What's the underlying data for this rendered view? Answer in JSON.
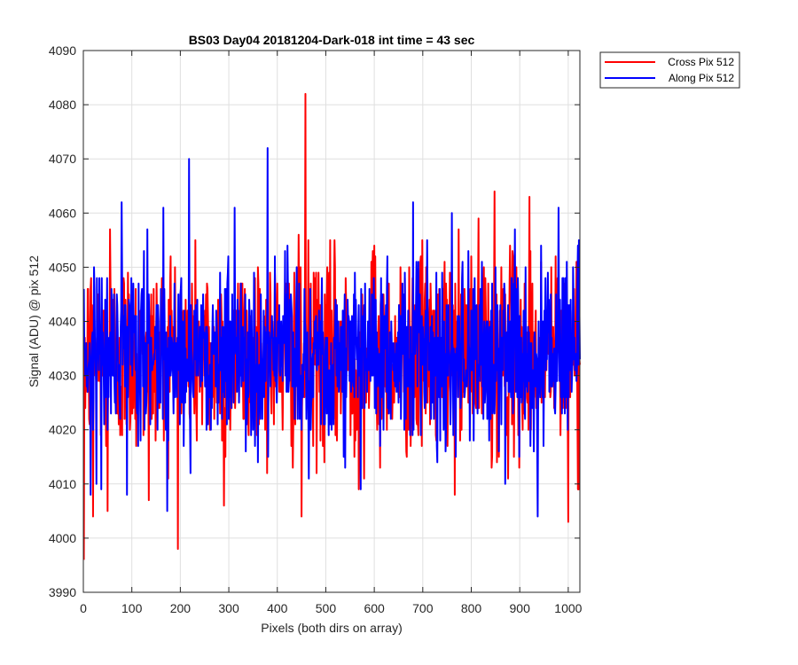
{
  "figure": {
    "background": "#ffffff"
  },
  "chart_data": {
    "type": "line",
    "title": "BS03 Day04 20181204-Dark-018 int time = 43 sec",
    "xlabel": "Pixels (both dirs on array)",
    "ylabel": "Signal (ADU) @ pix 512",
    "xlim": [
      0,
      1024
    ],
    "ylim": [
      3990,
      4090
    ],
    "xticks": [
      0,
      100,
      200,
      300,
      400,
      500,
      600,
      700,
      800,
      900,
      1000
    ],
    "yticks": [
      3990,
      4000,
      4010,
      4020,
      4030,
      4040,
      4050,
      4060,
      4070,
      4080,
      4090
    ],
    "grid": true,
    "legend": "outside-top-right",
    "x": {
      "start": 1,
      "end": 1024,
      "step": 1
    },
    "series": [
      {
        "name": "Cross Pix 512",
        "color": "#ff0000",
        "baseline": 4034,
        "noise_sd": 9,
        "sampled_values": [
          [
            1,
            3996
          ],
          [
            20,
            4004
          ],
          [
            50,
            4005
          ],
          [
            55,
            4057
          ],
          [
            80,
            4019
          ],
          [
            120,
            4044
          ],
          [
            135,
            4007
          ],
          [
            180,
            4052
          ],
          [
            260,
            4027
          ],
          [
            290,
            4006
          ],
          [
            360,
            4050
          ],
          [
            450,
            4004
          ],
          [
            458,
            4082
          ],
          [
            520,
            4019
          ],
          [
            568,
            4009
          ],
          [
            600,
            4054
          ],
          [
            740,
            4026
          ],
          [
            800,
            4052
          ],
          [
            848,
            4064
          ],
          [
            920,
            4063
          ],
          [
            1000,
            4003
          ],
          [
            1020,
            4009
          ]
        ]
      },
      {
        "name": "Along Pix 512",
        "color": "#0000ff",
        "baseline": 4034,
        "noise_sd": 8,
        "sampled_values": [
          [
            1,
            4046
          ],
          [
            15,
            4008
          ],
          [
            90,
            4008
          ],
          [
            165,
            4061
          ],
          [
            218,
            4070
          ],
          [
            280,
            4030
          ],
          [
            312,
            4061
          ],
          [
            380,
            4072
          ],
          [
            440,
            4050
          ],
          [
            540,
            4013
          ],
          [
            572,
            4009
          ],
          [
            680,
            4062
          ],
          [
            760,
            4060
          ],
          [
            870,
            4010
          ],
          [
            937,
            4004
          ],
          [
            980,
            4061
          ],
          [
            1020,
            4054
          ]
        ]
      }
    ]
  }
}
